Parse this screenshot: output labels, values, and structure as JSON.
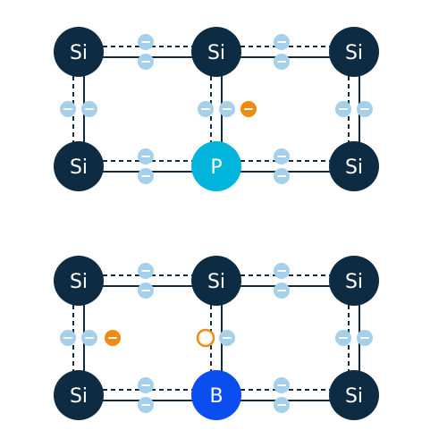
{
  "colors": {
    "silicon": "#0d2c44",
    "phosphorus": "#00b4dc",
    "boron": "#0a4ef0",
    "electron": "#a6d0ea",
    "extra_electron": "#ef8a12",
    "hole": "#ef8a12",
    "bond": "#0f2c43"
  },
  "icons": {
    "electron": "minus-sign",
    "hole": "open-circle"
  },
  "lattices": [
    {
      "name": "n-type-phosphorus-doped",
      "atoms": [
        {
          "label": "Si",
          "kind": "silicon"
        },
        {
          "label": "Si",
          "kind": "silicon"
        },
        {
          "label": "Si",
          "kind": "silicon"
        },
        {
          "label": "Si",
          "kind": "silicon"
        },
        {
          "label": "P",
          "kind": "phosphorus"
        },
        {
          "label": "Si",
          "kind": "silicon"
        }
      ],
      "extra_electron": true,
      "hole": false
    },
    {
      "name": "p-type-boron-doped",
      "atoms": [
        {
          "label": "Si",
          "kind": "silicon"
        },
        {
          "label": "Si",
          "kind": "silicon"
        },
        {
          "label": "Si",
          "kind": "silicon"
        },
        {
          "label": "Si",
          "kind": "silicon"
        },
        {
          "label": "B",
          "kind": "boron"
        },
        {
          "label": "Si",
          "kind": "silicon"
        }
      ],
      "extra_electron": true,
      "hole": true
    }
  ]
}
